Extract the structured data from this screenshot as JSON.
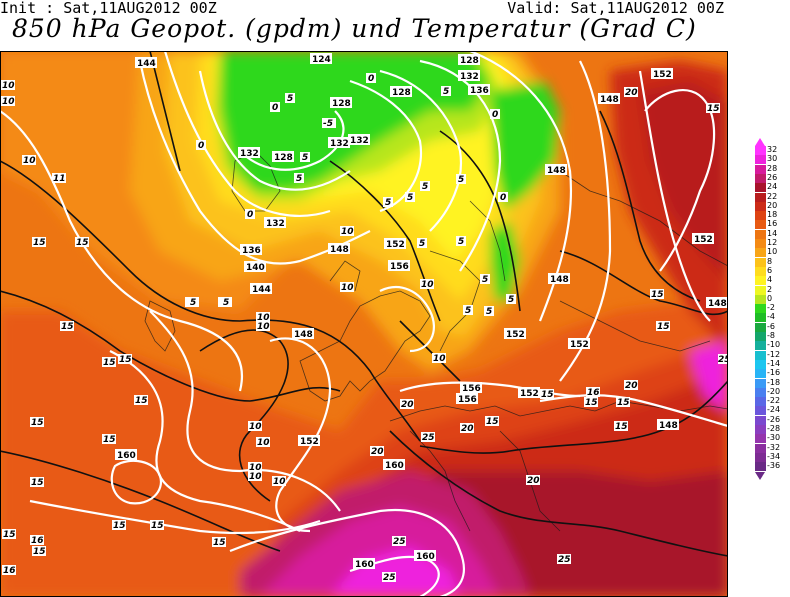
{
  "header": {
    "init": "Init : Sat,11AUG2012 00Z",
    "valid": "Valid: Sat,11AUG2012 00Z",
    "title": "850 hPa Geopot. (gpdm) und Temperatur (Grad C)"
  },
  "legend": {
    "top_color": "#ff33ff",
    "bottom_color": "#6a2a86",
    "items": [
      {
        "value": "32",
        "color": "#ff33ff"
      },
      {
        "value": "30",
        "color": "#ee22dd"
      },
      {
        "value": "28",
        "color": "#d71a9c"
      },
      {
        "value": "26",
        "color": "#c11b6a"
      },
      {
        "value": "24",
        "color": "#a8132b"
      },
      {
        "value": "22",
        "color": "#b81d1d"
      },
      {
        "value": "20",
        "color": "#cc2b17"
      },
      {
        "value": "18",
        "color": "#de4313"
      },
      {
        "value": "16",
        "color": "#e85a12"
      },
      {
        "value": "14",
        "color": "#ed7512"
      },
      {
        "value": "12",
        "color": "#f48a14"
      },
      {
        "value": "10",
        "color": "#f8a517"
      },
      {
        "value": "8",
        "color": "#fcc21a"
      },
      {
        "value": "6",
        "color": "#ffdc1e"
      },
      {
        "value": "4",
        "color": "#fff322"
      },
      {
        "value": "2",
        "color": "#eef722"
      },
      {
        "value": "0",
        "color": "#b7e61f"
      },
      {
        "value": "-2",
        "color": "#2fd81c"
      },
      {
        "value": "-4",
        "color": "#1fbd26"
      },
      {
        "value": "-6",
        "color": "#1aa93f"
      },
      {
        "value": "-8",
        "color": "#14a66b"
      },
      {
        "value": "-10",
        "color": "#15b09c"
      },
      {
        "value": "-12",
        "color": "#18bfcf"
      },
      {
        "value": "-14",
        "color": "#1cc6f0"
      },
      {
        "value": "-16",
        "color": "#28b4f6"
      },
      {
        "value": "-18",
        "color": "#3a9af6"
      },
      {
        "value": "-20",
        "color": "#4a7ff0"
      },
      {
        "value": "-22",
        "color": "#5a67e6"
      },
      {
        "value": "-24",
        "color": "#6b56dc"
      },
      {
        "value": "-26",
        "color": "#7b48cf"
      },
      {
        "value": "-28",
        "color": "#8a3ec0"
      },
      {
        "value": "-30",
        "color": "#9535ad"
      },
      {
        "value": "-32",
        "color": "#8a2f9f"
      },
      {
        "value": "-34",
        "color": "#7d2c93"
      },
      {
        "value": "-36",
        "color": "#6a2a86"
      }
    ]
  },
  "geopotential_labels": [
    "144",
    "124",
    "128",
    "132",
    "136",
    "148",
    "152",
    "156",
    "160",
    "128",
    "132",
    "136",
    "128",
    "132",
    "132",
    "136",
    "140",
    "144",
    "148",
    "152",
    "156",
    "152",
    "148",
    "148",
    "152",
    "152",
    "152",
    "156",
    "156",
    "160",
    "160",
    "160",
    "148",
    "148",
    "152",
    "148"
  ],
  "temperature_labels": [
    "10",
    "10",
    "10",
    "11",
    "15",
    "15",
    "15",
    "15",
    "15",
    "15",
    "15",
    "15",
    "15",
    "15",
    "15",
    "16",
    "15",
    "16",
    "15",
    "15",
    "5",
    "5",
    "10",
    "10",
    "10",
    "10",
    "10",
    "10",
    "10",
    "10",
    "10",
    "10",
    "10",
    "10",
    "10",
    "0",
    "0",
    "0",
    "5",
    "-5",
    "5",
    "5",
    "5",
    "0",
    "5",
    "5",
    "0",
    "5",
    "5",
    "5",
    "5",
    "5",
    "5",
    "0",
    "5",
    "5",
    "15",
    "15",
    "16",
    "15",
    "15",
    "15",
    "15",
    "15",
    "20",
    "20",
    "20",
    "20",
    "20",
    "25",
    "25",
    "25",
    "25",
    "25",
    "25",
    "20",
    "15"
  ]
}
